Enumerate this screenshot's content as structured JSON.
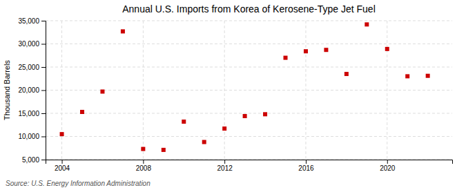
{
  "chart_data": {
    "type": "scatter",
    "title": "Annual U.S. Imports from Korea of Kerosene-Type Jet Fuel",
    "ylabel": "Thousand Barrels",
    "annotations": [
      "Source: U.S. Energy Information Administration"
    ],
    "x": [
      2004,
      2005,
      2006,
      2007,
      2008,
      2009,
      2010,
      2011,
      2012,
      2013,
      2014,
      2015,
      2016,
      2017,
      2018,
      2019,
      2020,
      2021,
      2022
    ],
    "values": [
      10500,
      15300,
      19700,
      32700,
      7300,
      7100,
      13200,
      8800,
      11700,
      14400,
      14800,
      27000,
      28400,
      28700,
      23500,
      34200,
      28900,
      23000,
      23100
    ],
    "color": "#cc0000",
    "marker": "square",
    "xlim": [
      2003.2,
      2023.2
    ],
    "xticks": [
      2004,
      2008,
      2012,
      2016,
      2020
    ],
    "ylim": [
      5000,
      35000
    ],
    "yticks": [
      {
        "value": 5000,
        "label": "5,000"
      },
      {
        "value": 10000,
        "label": "10,000"
      },
      {
        "value": 15000,
        "label": "15,000"
      },
      {
        "value": 20000,
        "label": "20,000"
      },
      {
        "value": 25000,
        "label": "25,000"
      },
      {
        "value": 30000,
        "label": "30,000"
      },
      {
        "value": 35000,
        "label": "35,000"
      }
    ],
    "grid": true
  }
}
